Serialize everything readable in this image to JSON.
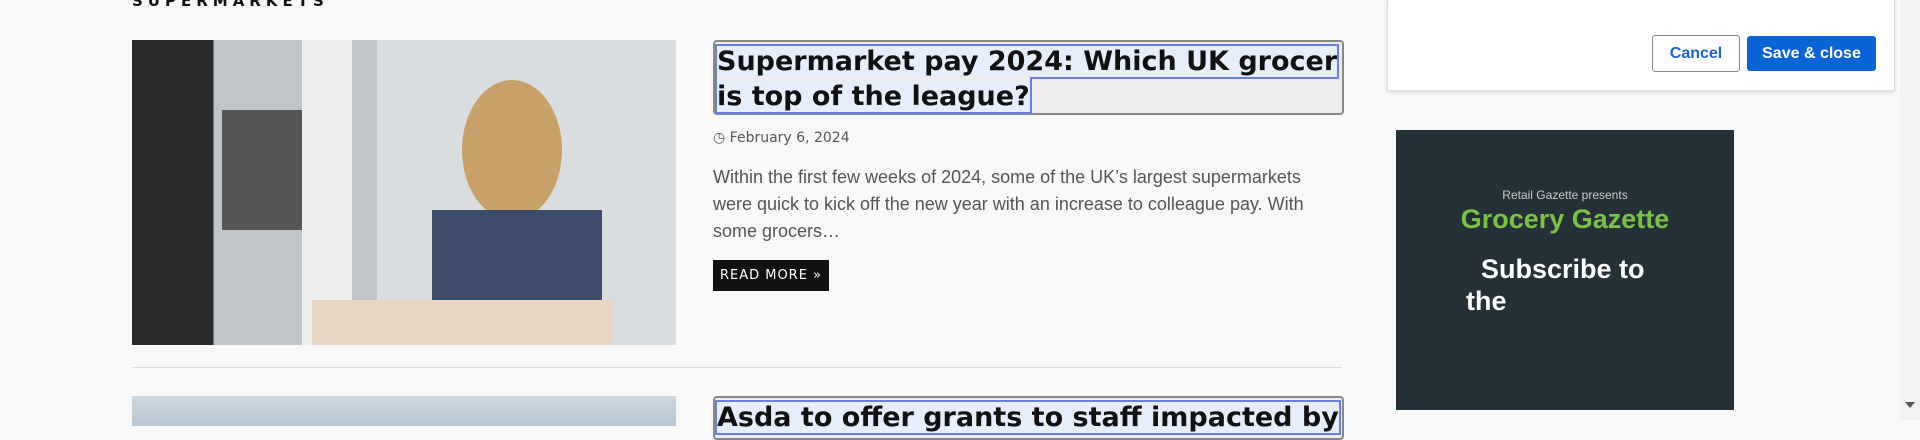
{
  "section": "SUPERMARKETS",
  "articles": [
    {
      "title": "Supermarket pay 2024: Which UK grocer is top of the league?",
      "date": "February 6, 2024",
      "excerpt": "Within the first few weeks of 2024, some of the UK’s largest supermarkets were quick to kick off the new year with an increase to colleague pay. With some grocers…",
      "read_more": "READ MORE"
    },
    {
      "title": "Asda to offer grants to staff impacted by"
    }
  ],
  "dialog": {
    "cancel": "Cancel",
    "save": "Save & close"
  },
  "ad": {
    "presents": "Retail Gazette presents",
    "brand": "Grocery Gazette",
    "line1": "Subscribe to",
    "line2": "the"
  }
}
